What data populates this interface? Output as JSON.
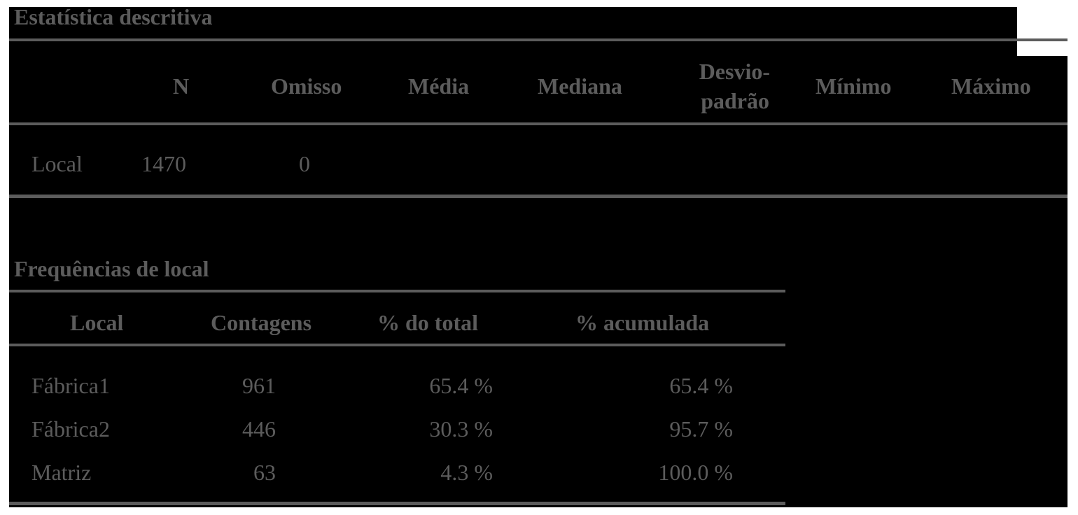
{
  "descriptive": {
    "title": "Estatística descritiva",
    "headers": [
      "N",
      "Omisso",
      "Média",
      "Mediana",
      "Desvio-",
      "padrão",
      "Mínimo",
      "Máximo"
    ],
    "row": {
      "label": "Local",
      "n": "1470",
      "missing": "0"
    }
  },
  "frequencies": {
    "title": "Frequências de local",
    "headers": [
      "Local",
      "Contagens",
      "% do total",
      "% acumulada"
    ],
    "rows": [
      {
        "local": "Fábrica1",
        "count": "961",
        "pct": "65.4 %",
        "cum": "65.4 %"
      },
      {
        "local": "Fábrica2",
        "count": "446",
        "pct": "30.3 %",
        "cum": "95.7 %"
      },
      {
        "local": "Matriz",
        "count": "63",
        "pct": "4.3 %",
        "cum": "100.0 %"
      }
    ]
  }
}
